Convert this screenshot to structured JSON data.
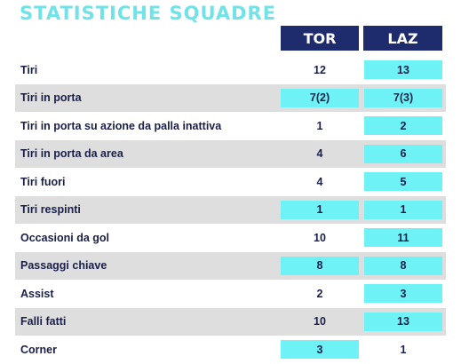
{
  "title": "STATISTICHE SQUADRE",
  "teams": {
    "home": "TOR",
    "away": "LAZ"
  },
  "colors": {
    "header_bg": "#1e2c6e",
    "highlight": "#6ff2f5",
    "title": "#6fe3e8",
    "row_shade": "#dedede"
  },
  "rows": [
    {
      "label": "Tiri",
      "tor": "12",
      "laz": "13",
      "tor_hl": false,
      "laz_hl": true
    },
    {
      "label": "Tiri in porta",
      "tor": "7(2)",
      "laz": "7(3)",
      "tor_hl": true,
      "laz_hl": true
    },
    {
      "label": "Tiri in porta su azione da palla inattiva",
      "tor": "1",
      "laz": "2",
      "tor_hl": false,
      "laz_hl": true
    },
    {
      "label": "Tiri in porta da area",
      "tor": "4",
      "laz": "6",
      "tor_hl": false,
      "laz_hl": true
    },
    {
      "label": "Tiri fuori",
      "tor": "4",
      "laz": "5",
      "tor_hl": false,
      "laz_hl": true
    },
    {
      "label": "Tiri respinti",
      "tor": "1",
      "laz": "1",
      "tor_hl": true,
      "laz_hl": true
    },
    {
      "label": "Occasioni da gol",
      "tor": "10",
      "laz": "11",
      "tor_hl": false,
      "laz_hl": true
    },
    {
      "label": "Passaggi chiave",
      "tor": "8",
      "laz": "8",
      "tor_hl": true,
      "laz_hl": true
    },
    {
      "label": "Assist",
      "tor": "2",
      "laz": "3",
      "tor_hl": false,
      "laz_hl": true
    },
    {
      "label": "Falli fatti",
      "tor": "10",
      "laz": "13",
      "tor_hl": false,
      "laz_hl": true
    },
    {
      "label": "Corner",
      "tor": "3",
      "laz": "1",
      "tor_hl": true,
      "laz_hl": false
    }
  ]
}
